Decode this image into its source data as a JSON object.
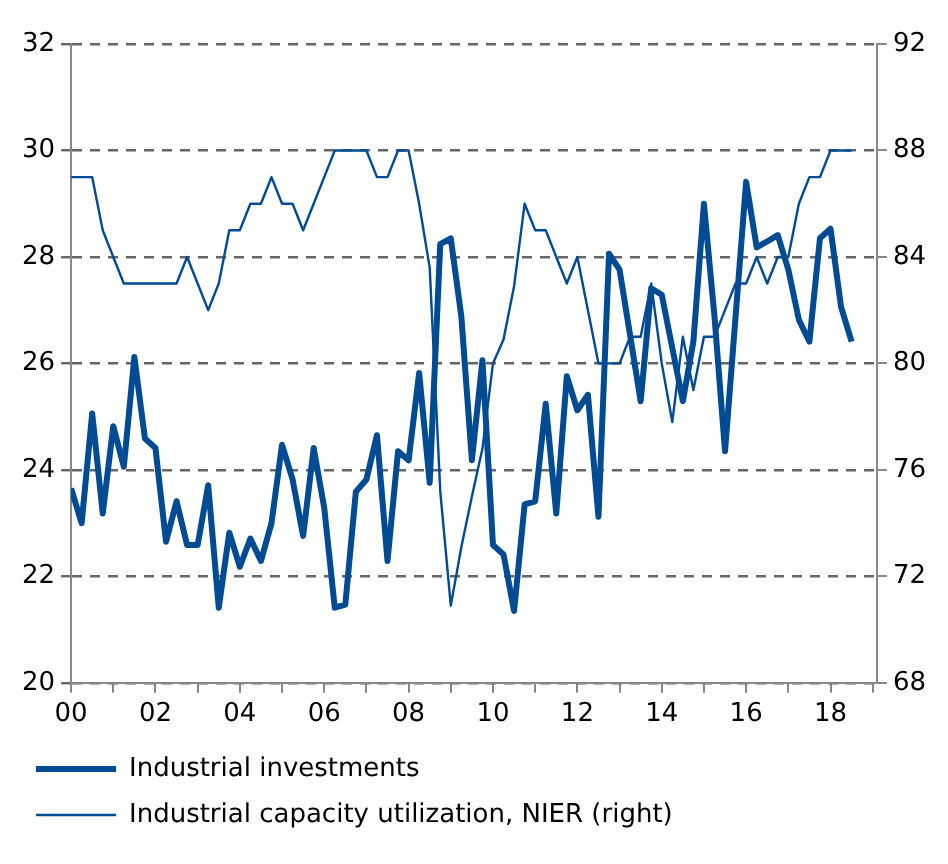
{
  "chart_data": {
    "type": "line",
    "x": [
      2000,
      2000.25,
      2000.5,
      2000.75,
      2001,
      2001.25,
      2001.5,
      2001.75,
      2002,
      2002.25,
      2002.5,
      2002.75,
      2003,
      2003.25,
      2003.5,
      2003.75,
      2004,
      2004.25,
      2004.5,
      2004.75,
      2005,
      2005.25,
      2005.5,
      2005.75,
      2006,
      2006.25,
      2006.5,
      2006.75,
      2007,
      2007.25,
      2007.5,
      2007.75,
      2008,
      2008.25,
      2008.5,
      2008.75,
      2009,
      2009.25,
      2009.5,
      2009.75,
      2010,
      2010.25,
      2010.5,
      2010.75,
      2011,
      2011.25,
      2011.5,
      2011.75,
      2012,
      2012.25,
      2012.5,
      2012.75,
      2013,
      2013.25,
      2013.5,
      2013.75,
      2014,
      2014.25,
      2014.5,
      2014.75,
      2015,
      2015.25,
      2015.5,
      2015.75,
      2016,
      2016.25,
      2016.5,
      2016.75,
      2017,
      2017.25,
      2017.5,
      2017.75,
      2018,
      2018.25,
      2018.5
    ],
    "series": [
      {
        "name": "Industrial investments",
        "color": "#004b93",
        "values": [
          23.65,
          23.0,
          25.06,
          23.18,
          24.82,
          24.06,
          26.12,
          24.59,
          24.41,
          22.65,
          23.41,
          22.59,
          22.59,
          23.71,
          21.41,
          22.82,
          22.18,
          22.71,
          22.29,
          23.0,
          24.47,
          23.82,
          22.76,
          24.41,
          23.29,
          21.41,
          21.47,
          23.59,
          23.82,
          24.65,
          22.29,
          24.35,
          24.18,
          25.82,
          23.76,
          28.24,
          28.35,
          26.88,
          24.18,
          26.06,
          22.59,
          22.41,
          21.35,
          23.35,
          23.41,
          25.24,
          23.18,
          25.76,
          25.12,
          25.41,
          23.12,
          28.06,
          27.76,
          26.53,
          25.29,
          27.41,
          27.29,
          26.29,
          25.29,
          26.41,
          29.0,
          26.88,
          24.35,
          26.88,
          29.41,
          28.18,
          28.29,
          28.41,
          27.76,
          26.82,
          26.41,
          28.35,
          28.53,
          27.06,
          26.41
        ]
      },
      {
        "name": "Industrial capacity utilization, NIER (right)",
        "color": "#004b93",
        "axis": "y2",
        "values": [
          87,
          87,
          87,
          85,
          84,
          83,
          83,
          83,
          83,
          83,
          83,
          84,
          83,
          82,
          83,
          85,
          85,
          86,
          86,
          87,
          86,
          86,
          85,
          86,
          87,
          88,
          88,
          88,
          88,
          87,
          87,
          88,
          88,
          86,
          83.6,
          75.2,
          70.9,
          73.1,
          75,
          76.8,
          80,
          80.9,
          82.9,
          86,
          85,
          85,
          84,
          83,
          84,
          82,
          80,
          80,
          80,
          81,
          81,
          83,
          80,
          77.8,
          81,
          79,
          81,
          81,
          82,
          83,
          83,
          84,
          83,
          84,
          84,
          86,
          87,
          87,
          88,
          88,
          88
        ]
      }
    ],
    "xlim": [
      2000,
      2019.1
    ],
    "xticks": [
      {
        "value": 2000,
        "label": "00"
      },
      {
        "value": 2001,
        "label": null
      },
      {
        "value": 2002,
        "label": "02"
      },
      {
        "value": 2003,
        "label": null
      },
      {
        "value": 2004,
        "label": "04"
      },
      {
        "value": 2005,
        "label": null
      },
      {
        "value": 2006,
        "label": "06"
      },
      {
        "value": 2007,
        "label": null
      },
      {
        "value": 2008,
        "label": "08"
      },
      {
        "value": 2009,
        "label": null
      },
      {
        "value": 2010,
        "label": "10"
      },
      {
        "value": 2011,
        "label": null
      },
      {
        "value": 2012,
        "label": "12"
      },
      {
        "value": 2013,
        "label": null
      },
      {
        "value": 2014,
        "label": "14"
      },
      {
        "value": 2015,
        "label": null
      },
      {
        "value": 2016,
        "label": "16"
      },
      {
        "value": 2017,
        "label": null
      },
      {
        "value": 2018,
        "label": "18"
      },
      {
        "value": 2019,
        "label": null
      }
    ],
    "ylim": [
      20,
      32
    ],
    "yticks": [
      20,
      22,
      24,
      26,
      28,
      30,
      32
    ],
    "y2lim": [
      68,
      92
    ],
    "y2ticks": [
      68,
      72,
      76,
      80,
      84,
      88,
      92
    ],
    "grid": "y",
    "legend": "bottom",
    "marker": "none",
    "line_style": "solid"
  }
}
